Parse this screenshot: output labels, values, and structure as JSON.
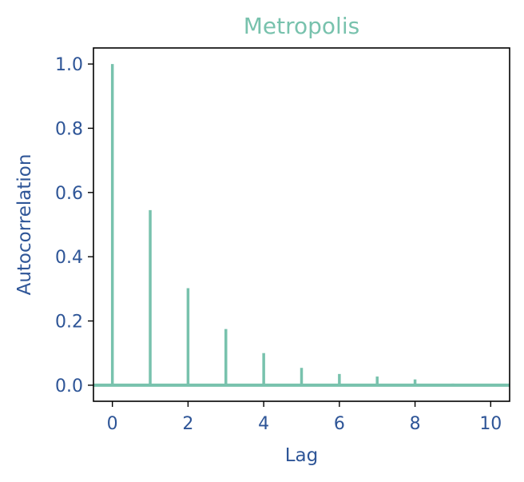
{
  "chart_data": {
    "type": "bar",
    "title": "Metropolis",
    "xlabel": "Lag",
    "ylabel": "Autocorrelation",
    "xlim": [
      -0.5,
      10.5
    ],
    "ylim": [
      -0.05,
      1.05
    ],
    "xticks": [
      0,
      2,
      4,
      6,
      8,
      10
    ],
    "xtick_labels": [
      "0",
      "2",
      "4",
      "6",
      "8",
      "10"
    ],
    "yticks": [
      0.0,
      0.2,
      0.4,
      0.6,
      0.8,
      1.0
    ],
    "ytick_labels": [
      "0.0",
      "0.2",
      "0.4",
      "0.6",
      "0.8",
      "1.0"
    ],
    "x": [
      0,
      1,
      2,
      3,
      4,
      5,
      6,
      7,
      8,
      9,
      10
    ],
    "values": [
      1.0,
      0.545,
      0.302,
      0.175,
      0.1,
      0.054,
      0.035,
      0.027,
      0.018,
      0.005,
      0.003
    ],
    "grid": false,
    "legend": "none",
    "colors": {
      "series": "#78c2ad",
      "title": "#78c2ad",
      "labels": "#2e5597",
      "axes": "#000000"
    }
  }
}
